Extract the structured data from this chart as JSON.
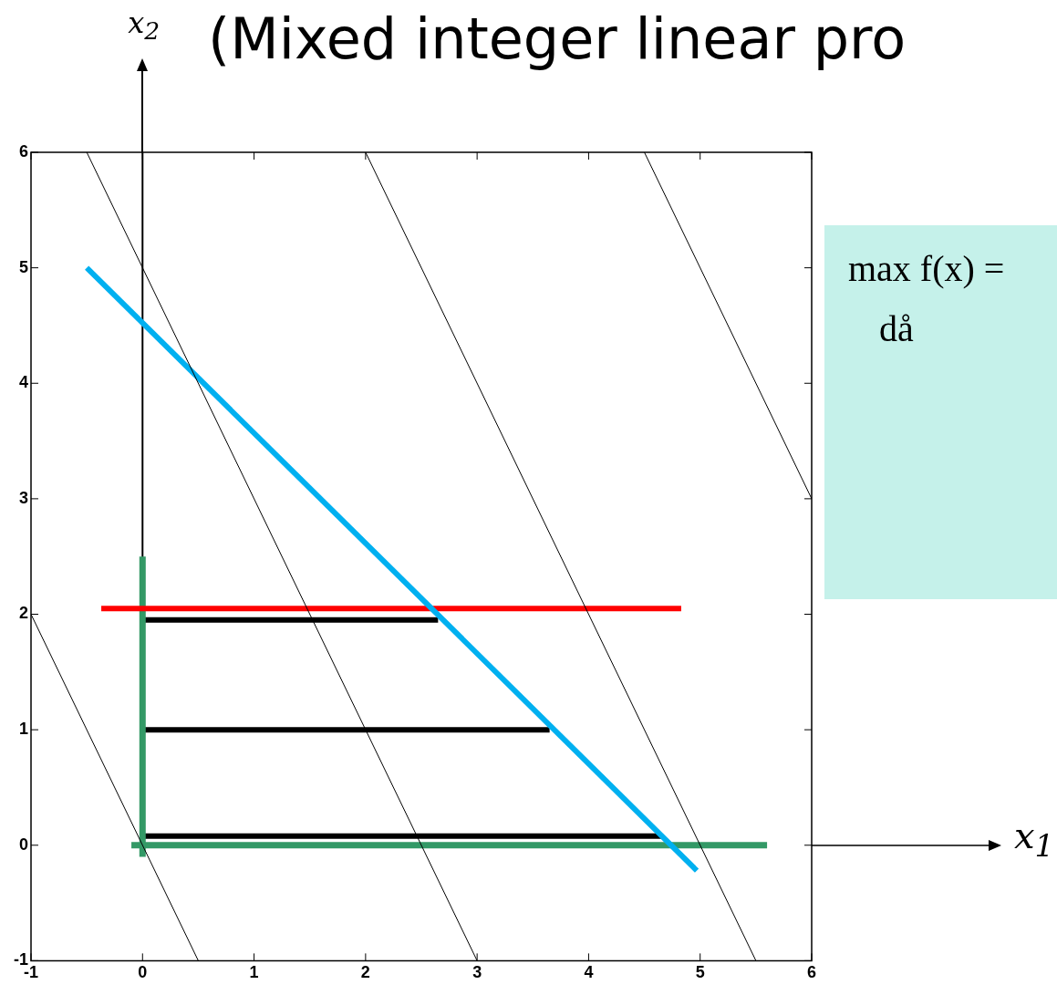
{
  "chart_data": {
    "type": "line",
    "title": "(Mixed integer linear pro",
    "ylabel": "x$_{2}$",
    "annotations": [
      "x$_{1}$",
      "max f(x) =",
      "då"
    ],
    "xlim": [
      -1,
      6
    ],
    "ylim": [
      -1,
      6
    ],
    "xticks": [
      -1,
      0,
      1,
      2,
      3,
      4,
      5,
      6
    ],
    "yticks": [
      -1,
      0,
      1,
      2,
      3,
      4,
      5,
      6
    ],
    "grid": false,
    "legend": false,
    "marker": "none",
    "line_style": "solid",
    "series": [
      {
        "color": "#000000",
        "x": [
          -1,
          0.5
        ],
        "values": [
          2,
          -1
        ]
      },
      {
        "color": "#000000",
        "x": [
          -0.5,
          3
        ],
        "values": [
          6,
          -1
        ]
      },
      {
        "color": "#000000",
        "x": [
          2,
          5.5
        ],
        "values": [
          6,
          -1
        ]
      },
      {
        "color": "#000000",
        "x": [
          4.5,
          6
        ],
        "values": [
          6,
          3
        ]
      },
      {
        "color": "#00b0f0",
        "x": [
          -0.5,
          4.97
        ],
        "values": [
          5,
          -0.22
        ]
      },
      {
        "color": "#ff0000",
        "x": [
          -0.37,
          4.83
        ],
        "values": [
          2.05,
          2.05
        ]
      },
      {
        "color": "#339966",
        "x": [
          0,
          0
        ],
        "values": [
          -0.1,
          2.5
        ]
      },
      {
        "color": "#339966",
        "x": [
          -0.1,
          5.6
        ],
        "values": [
          0,
          0
        ]
      },
      {
        "color": "#000000",
        "x": [
          0,
          2.65
        ],
        "values": [
          1.95,
          1.95
        ]
      },
      {
        "color": "#000000",
        "x": [
          0,
          3.65
        ],
        "values": [
          1,
          1
        ]
      },
      {
        "color": "#000000",
        "x": [
          0,
          4.65
        ],
        "values": [
          0.08,
          0.08
        ]
      }
    ]
  }
}
